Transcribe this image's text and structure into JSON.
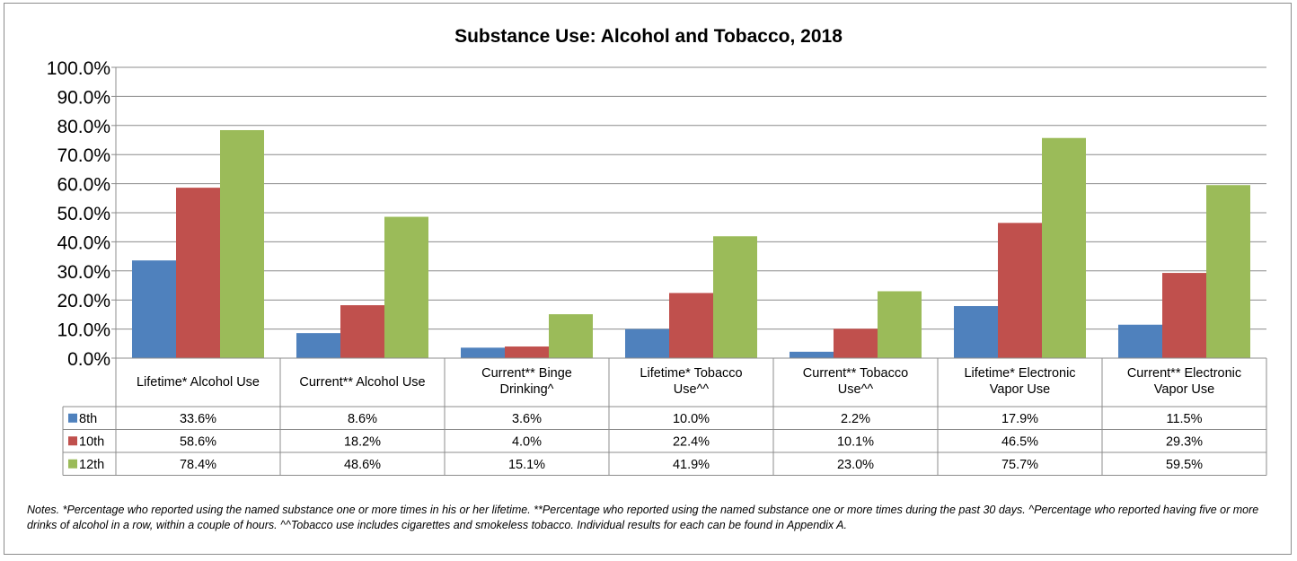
{
  "chart_data": {
    "type": "bar",
    "title": "Substance Use: Alcohol and Tobacco, 2018",
    "xlabel": "",
    "ylabel": "",
    "ylim": [
      0,
      100
    ],
    "y_ticks": [
      "0.0%",
      "10.0%",
      "20.0%",
      "30.0%",
      "40.0%",
      "50.0%",
      "60.0%",
      "70.0%",
      "80.0%",
      "90.0%",
      "100.0%"
    ],
    "grid": true,
    "legend_placement": "data-table",
    "categories": [
      [
        "Lifetime* Alcohol Use"
      ],
      [
        "Current** Alcohol Use"
      ],
      [
        "Current** Binge",
        "Drinking^"
      ],
      [
        "Lifetime* Tobacco",
        "Use^^"
      ],
      [
        "Current** Tobacco",
        "Use^^"
      ],
      [
        "Lifetime* Electronic",
        "Vapor Use"
      ],
      [
        "Current** Electronic",
        "Vapor Use"
      ]
    ],
    "series": [
      {
        "name": "8th",
        "color": "#4f81bd",
        "values": [
          33.6,
          8.6,
          3.6,
          10.0,
          2.2,
          17.9,
          11.5
        ],
        "labels": [
          "33.6%",
          "8.6%",
          "3.6%",
          "10.0%",
          "2.2%",
          "17.9%",
          "11.5%"
        ]
      },
      {
        "name": "10th",
        "color": "#c0504d",
        "values": [
          58.6,
          18.2,
          4.0,
          22.4,
          10.1,
          46.5,
          29.3
        ],
        "labels": [
          "58.6%",
          "18.2%",
          "4.0%",
          "22.4%",
          "10.1%",
          "46.5%",
          "29.3%"
        ]
      },
      {
        "name": "12th",
        "color": "#9bbb59",
        "values": [
          78.4,
          48.6,
          15.1,
          41.9,
          23.0,
          75.7,
          59.5
        ],
        "labels": [
          "78.4%",
          "48.6%",
          "15.1%",
          "41.9%",
          "23.0%",
          "75.7%",
          "59.5%"
        ]
      }
    ]
  },
  "notes": "Notes. *Percentage who reported using the named substance one or more times in his or her lifetime. **Percentage who reported using the named substance one or more times during the past 30 days. ^Percentage who reported having five or more drinks of alcohol in a row, within a couple of hours. ^^Tobacco use includes cigarettes and smokeless tobacco. Individual results for each can be found in Appendix A."
}
